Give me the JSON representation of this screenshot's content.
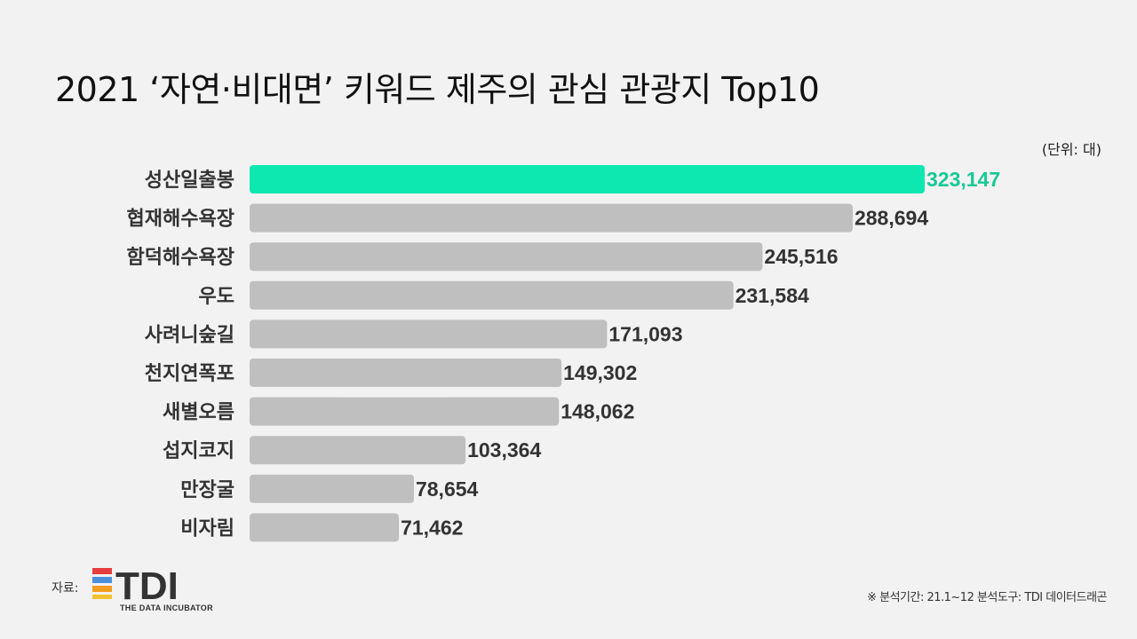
{
  "title": "2021 ‘자연·비대면’ 키워드 제주의 관심 관광지 Top10",
  "unit_label": "(단위: 대)",
  "colors": {
    "highlight": "#0de8b0",
    "highlight_text": "#17c995",
    "bar": "#bfbfbf",
    "label": "#333333"
  },
  "chart_data": {
    "type": "bar",
    "orientation": "horizontal",
    "title": "2021 ‘자연·비대면’ 키워드 제주의 관심 관광지 Top10",
    "unit": "(단위: 대)",
    "categories": [
      "성산일출봉",
      "협재해수욕장",
      "함덕해수욕장",
      "우도",
      "사려니숲길",
      "천지연폭포",
      "새별오름",
      "섭지코지",
      "만장굴",
      "비자림"
    ],
    "values": [
      323147,
      288694,
      245516,
      231584,
      171093,
      149302,
      148062,
      103364,
      78654,
      71462
    ],
    "value_labels": [
      "323,147",
      "288,694",
      "245,516",
      "231,584",
      "171,093",
      "149,302",
      "148,062",
      "103,364",
      "78,654",
      "71,462"
    ],
    "highlight_index": 0,
    "grid": false,
    "xlim": [
      0,
      323147
    ]
  },
  "footer": {
    "source_label": "자료:",
    "logo_text": "TDI",
    "logo_subtext": "THE DATA INCUBATOR",
    "note": "※ 분석기간: 21.1~12 분석도구: TDI 데이터드래곤"
  }
}
